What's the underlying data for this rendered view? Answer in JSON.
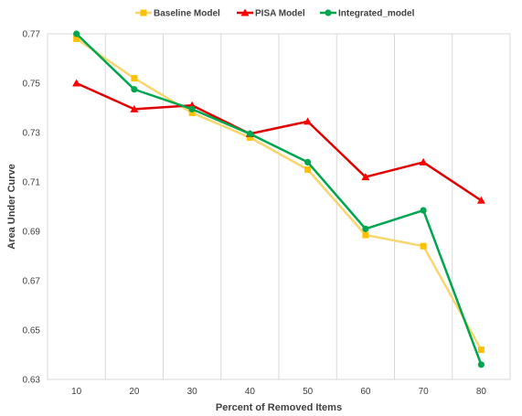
{
  "chart_data": {
    "type": "line",
    "title": "",
    "xlabel": "Percent of Removed Items",
    "ylabel": "Area Under Curve",
    "x": [
      10,
      20,
      30,
      40,
      50,
      60,
      70,
      80
    ],
    "x_tick_labels": [
      "10",
      "20",
      "30",
      "40",
      "50",
      "60",
      "70",
      "80"
    ],
    "ylim": [
      0.63,
      0.77
    ],
    "y_ticks": [
      0.63,
      0.65,
      0.67,
      0.69,
      0.71,
      0.73,
      0.75,
      0.77
    ],
    "y_tick_labels": [
      "0.63",
      "0.65",
      "0.67",
      "0.69",
      "0.71",
      "0.73",
      "0.75",
      "0.77"
    ],
    "grid": "vertical",
    "legend_position": "top",
    "series": [
      {
        "name": "Baseline Model",
        "color": "#FFC000",
        "line_color": "#F9D56E",
        "marker": "square",
        "values": [
          0.768,
          0.752,
          0.738,
          0.728,
          0.715,
          0.6885,
          0.684,
          0.642
        ]
      },
      {
        "name": "PISA Model",
        "color": "#FF0000",
        "line_color": "#E00000",
        "marker": "triangle",
        "values": [
          0.75,
          0.7395,
          0.741,
          0.7295,
          0.7345,
          0.712,
          0.718,
          0.7025
        ]
      },
      {
        "name": "Integrated_model",
        "color": "#00A550",
        "line_color": "#00A550",
        "marker": "circle",
        "values": [
          0.77,
          0.7475,
          0.7395,
          0.7295,
          0.718,
          0.691,
          0.6985,
          0.636
        ]
      }
    ]
  }
}
